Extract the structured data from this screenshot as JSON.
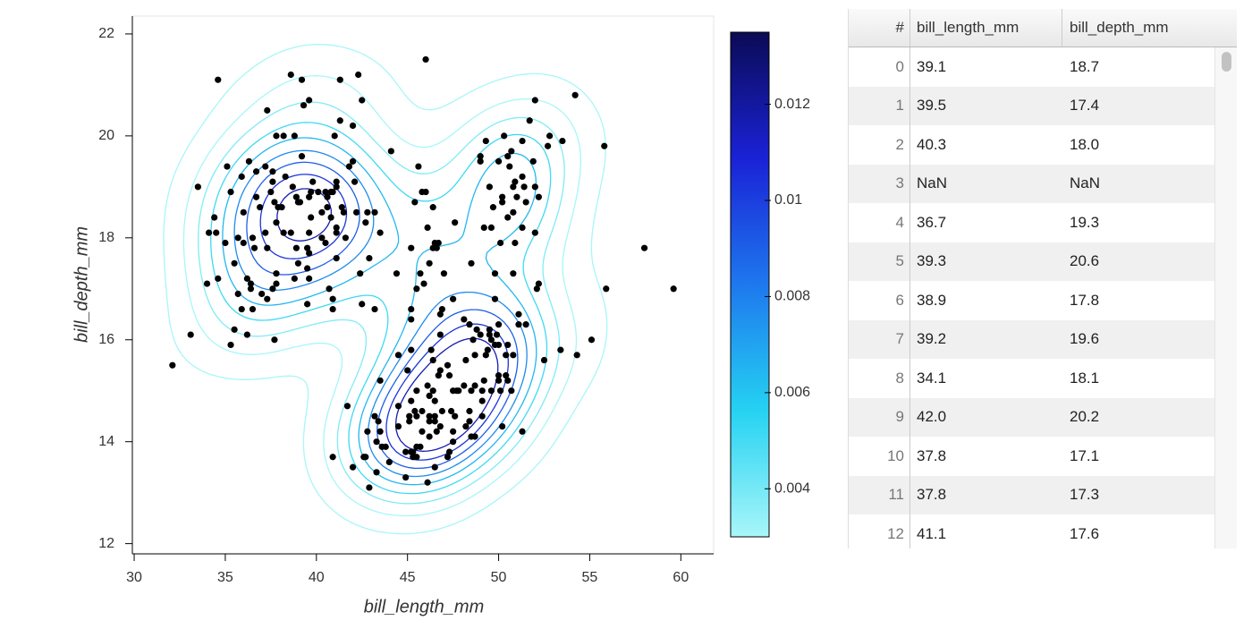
{
  "chart_data": {
    "type": "scatter-contour",
    "xlabel": "bill_length_mm",
    "ylabel": "bill_depth_mm",
    "xlim": [
      29.9,
      61.8
    ],
    "ylim": [
      11.8,
      22.35
    ],
    "xticks": [
      30,
      35,
      40,
      45,
      50,
      55,
      60
    ],
    "yticks": [
      12,
      14,
      16,
      18,
      20,
      22
    ],
    "point_color": "#000000",
    "points": [
      [
        38.6,
        18.1
      ],
      [
        39.1,
        18.7
      ],
      [
        39.5,
        17.4
      ],
      [
        40.3,
        18.0
      ],
      [
        36.7,
        19.3
      ],
      [
        39.3,
        20.6
      ],
      [
        38.9,
        17.8
      ],
      [
        39.2,
        19.6
      ],
      [
        34.1,
        18.1
      ],
      [
        42.0,
        20.2
      ],
      [
        37.8,
        17.1
      ],
      [
        37.8,
        17.3
      ],
      [
        41.1,
        17.6
      ],
      [
        38.6,
        21.2
      ],
      [
        34.6,
        21.1
      ],
      [
        36.6,
        17.8
      ],
      [
        38.7,
        19.0
      ],
      [
        42.5,
        20.7
      ],
      [
        34.4,
        18.4
      ],
      [
        46.0,
        21.5
      ],
      [
        37.8,
        18.3
      ],
      [
        37.7,
        18.7
      ],
      [
        35.9,
        19.2
      ],
      [
        38.2,
        18.1
      ],
      [
        38.8,
        17.2
      ],
      [
        35.3,
        18.9
      ],
      [
        40.6,
        18.6
      ],
      [
        40.5,
        17.9
      ],
      [
        37.9,
        18.6
      ],
      [
        40.5,
        18.9
      ],
      [
        39.5,
        16.7
      ],
      [
        37.2,
        18.1
      ],
      [
        39.5,
        17.8
      ],
      [
        40.9,
        18.9
      ],
      [
        36.4,
        17.0
      ],
      [
        39.2,
        21.1
      ],
      [
        38.8,
        20.0
      ],
      [
        42.2,
        18.5
      ],
      [
        37.6,
        19.3
      ],
      [
        39.8,
        19.1
      ],
      [
        36.5,
        18.0
      ],
      [
        40.8,
        18.4
      ],
      [
        36.0,
        18.5
      ],
      [
        44.1,
        19.7
      ],
      [
        37.0,
        16.9
      ],
      [
        39.6,
        18.8
      ],
      [
        41.1,
        19.0
      ],
      [
        37.5,
        18.9
      ],
      [
        36.0,
        17.9
      ],
      [
        42.3,
        21.2
      ],
      [
        39.6,
        17.7
      ],
      [
        40.1,
        18.9
      ],
      [
        35.0,
        17.9
      ],
      [
        42.0,
        19.5
      ],
      [
        34.5,
        18.1
      ],
      [
        41.4,
        18.6
      ],
      [
        39.0,
        17.5
      ],
      [
        40.6,
        18.8
      ],
      [
        36.5,
        16.6
      ],
      [
        37.6,
        19.1
      ],
      [
        35.7,
        16.9
      ],
      [
        41.3,
        21.1
      ],
      [
        37.6,
        17.0
      ],
      [
        41.1,
        18.2
      ],
      [
        36.4,
        17.1
      ],
      [
        41.6,
        18.0
      ],
      [
        35.5,
        16.2
      ],
      [
        41.1,
        19.1
      ],
      [
        35.9,
        16.6
      ],
      [
        41.8,
        19.4
      ],
      [
        33.5,
        19.0
      ],
      [
        39.7,
        18.4
      ],
      [
        39.6,
        17.2
      ],
      [
        45.8,
        18.9
      ],
      [
        35.5,
        17.5
      ],
      [
        42.8,
        18.5
      ],
      [
        40.9,
        16.8
      ],
      [
        37.2,
        19.4
      ],
      [
        36.2,
        16.1
      ],
      [
        42.1,
        19.1
      ],
      [
        34.6,
        17.2
      ],
      [
        42.9,
        17.6
      ],
      [
        36.7,
        18.8
      ],
      [
        35.1,
        19.4
      ],
      [
        37.3,
        20.5
      ],
      [
        41.3,
        20.3
      ],
      [
        36.3,
        19.5
      ],
      [
        36.9,
        18.6
      ],
      [
        38.3,
        19.2
      ],
      [
        38.9,
        18.8
      ],
      [
        35.7,
        18.0
      ],
      [
        41.1,
        18.1
      ],
      [
        34.0,
        17.1
      ],
      [
        39.6,
        20.7
      ],
      [
        36.2,
        17.2
      ],
      [
        40.8,
        18.9
      ],
      [
        38.1,
        18.6
      ],
      [
        40.3,
        18.5
      ],
      [
        33.1,
        16.1
      ],
      [
        43.2,
        18.5
      ],
      [
        41.0,
        20.0
      ],
      [
        37.7,
        16.0
      ],
      [
        37.8,
        20.0
      ],
      [
        39.7,
        18.9
      ],
      [
        39.6,
        18.1
      ],
      [
        38.2,
        20.0
      ],
      [
        32.1,
        15.5
      ],
      [
        40.7,
        17.0
      ],
      [
        37.3,
        16.8
      ],
      [
        39.0,
        18.7
      ],
      [
        37.3,
        17.8
      ],
      [
        42.7,
        18.3
      ],
      [
        41.5,
        18.5
      ],
      [
        35.3,
        15.9
      ],
      [
        46.5,
        17.9
      ],
      [
        50.0,
        19.5
      ],
      [
        51.3,
        19.2
      ],
      [
        45.4,
        18.7
      ],
      [
        52.7,
        19.8
      ],
      [
        45.2,
        17.8
      ],
      [
        46.1,
        18.2
      ],
      [
        51.3,
        18.2
      ],
      [
        46.0,
        18.9
      ],
      [
        51.3,
        19.9
      ],
      [
        46.6,
        17.8
      ],
      [
        51.7,
        20.3
      ],
      [
        47.0,
        17.3
      ],
      [
        52.0,
        18.1
      ],
      [
        45.9,
        17.1
      ],
      [
        50.5,
        19.6
      ],
      [
        50.3,
        20.0
      ],
      [
        58.0,
        17.8
      ],
      [
        46.4,
        18.6
      ],
      [
        49.2,
        18.2
      ],
      [
        42.4,
        17.3
      ],
      [
        48.5,
        17.5
      ],
      [
        43.2,
        16.6
      ],
      [
        50.6,
        19.4
      ],
      [
        46.7,
        17.9
      ],
      [
        52.0,
        19.0
      ],
      [
        50.5,
        18.4
      ],
      [
        49.5,
        19.0
      ],
      [
        46.4,
        17.8
      ],
      [
        52.8,
        20.0
      ],
      [
        40.9,
        16.6
      ],
      [
        54.2,
        20.8
      ],
      [
        42.5,
        16.7
      ],
      [
        51.0,
        18.8
      ],
      [
        49.7,
        18.6
      ],
      [
        47.5,
        16.8
      ],
      [
        47.6,
        18.3
      ],
      [
        52.0,
        20.7
      ],
      [
        46.9,
        16.6
      ],
      [
        53.5,
        19.9
      ],
      [
        49.0,
        19.5
      ],
      [
        46.2,
        17.5
      ],
      [
        50.9,
        19.1
      ],
      [
        45.5,
        17.0
      ],
      [
        50.9,
        17.9
      ],
      [
        50.8,
        18.5
      ],
      [
        50.1,
        17.9
      ],
      [
        49.0,
        19.6
      ],
      [
        51.5,
        18.7
      ],
      [
        49.8,
        17.3
      ],
      [
        48.1,
        16.4
      ],
      [
        51.4,
        19.0
      ],
      [
        45.7,
        17.3
      ],
      [
        50.7,
        19.7
      ],
      [
        52.2,
        18.8
      ],
      [
        45.2,
        16.6
      ],
      [
        49.3,
        19.9
      ],
      [
        50.2,
        18.8
      ],
      [
        45.6,
        19.4
      ],
      [
        51.9,
        19.5
      ],
      [
        46.8,
        16.5
      ],
      [
        55.8,
        19.8
      ],
      [
        43.5,
        18.1
      ],
      [
        49.6,
        18.2
      ],
      [
        50.8,
        19.0
      ],
      [
        50.2,
        18.7
      ],
      [
        46.1,
        13.2
      ],
      [
        50.0,
        16.3
      ],
      [
        48.7,
        14.1
      ],
      [
        50.0,
        15.2
      ],
      [
        47.6,
        14.5
      ],
      [
        46.5,
        13.5
      ],
      [
        45.4,
        14.6
      ],
      [
        46.7,
        15.3
      ],
      [
        43.3,
        13.4
      ],
      [
        46.8,
        15.4
      ],
      [
        40.9,
        13.7
      ],
      [
        49.0,
        16.1
      ],
      [
        45.5,
        13.7
      ],
      [
        48.4,
        14.6
      ],
      [
        45.8,
        14.6
      ],
      [
        49.3,
        15.7
      ],
      [
        42.0,
        13.5
      ],
      [
        49.2,
        15.2
      ],
      [
        46.2,
        14.5
      ],
      [
        48.7,
        15.1
      ],
      [
        50.2,
        14.3
      ],
      [
        45.1,
        14.5
      ],
      [
        46.5,
        14.5
      ],
      [
        46.3,
        15.8
      ],
      [
        42.9,
        13.1
      ],
      [
        46.1,
        15.1
      ],
      [
        44.5,
        14.3
      ],
      [
        47.8,
        15.0
      ],
      [
        48.2,
        14.3
      ],
      [
        50.0,
        15.3
      ],
      [
        47.3,
        15.3
      ],
      [
        42.8,
        14.2
      ],
      [
        59.6,
        17.0
      ],
      [
        49.1,
        14.8
      ],
      [
        48.4,
        16.3
      ],
      [
        42.6,
        13.7
      ],
      [
        44.4,
        17.3
      ],
      [
        44.0,
        13.6
      ],
      [
        48.7,
        15.7
      ],
      [
        42.7,
        13.7
      ],
      [
        49.6,
        16.0
      ],
      [
        45.3,
        13.7
      ],
      [
        49.6,
        15.0
      ],
      [
        50.5,
        15.9
      ],
      [
        43.6,
        13.9
      ],
      [
        45.5,
        13.9
      ],
      [
        44.9,
        13.3
      ],
      [
        45.2,
        15.8
      ],
      [
        46.6,
        14.2
      ],
      [
        48.5,
        14.1
      ],
      [
        45.1,
        14.4
      ],
      [
        50.1,
        15.0
      ],
      [
        46.5,
        14.4
      ],
      [
        45.0,
        15.4
      ],
      [
        43.8,
        13.9
      ],
      [
        45.5,
        15.0
      ],
      [
        43.2,
        14.5
      ],
      [
        50.4,
        15.3
      ],
      [
        45.3,
        13.8
      ],
      [
        46.2,
        14.9
      ],
      [
        45.7,
        13.9
      ],
      [
        54.3,
        15.7
      ],
      [
        45.8,
        14.2
      ],
      [
        49.8,
        16.8
      ],
      [
        46.2,
        14.4
      ],
      [
        49.5,
        16.2
      ],
      [
        43.5,
        14.2
      ],
      [
        50.7,
        15.0
      ],
      [
        47.7,
        15.0
      ],
      [
        46.4,
        15.6
      ],
      [
        48.2,
        15.6
      ],
      [
        46.5,
        14.8
      ],
      [
        46.4,
        15.0
      ],
      [
        48.6,
        16.0
      ],
      [
        47.5,
        14.2
      ],
      [
        51.1,
        16.3
      ],
      [
        45.2,
        13.8
      ],
      [
        45.2,
        16.4
      ],
      [
        49.1,
        14.5
      ],
      [
        52.5,
        15.6
      ],
      [
        47.4,
        14.6
      ],
      [
        50.0,
        15.9
      ],
      [
        44.9,
        13.8
      ],
      [
        50.8,
        17.3
      ],
      [
        43.4,
        14.4
      ],
      [
        51.3,
        14.2
      ],
      [
        47.5,
        14.0
      ],
      [
        52.1,
        17.0
      ],
      [
        47.5,
        15.0
      ],
      [
        52.2,
        17.1
      ],
      [
        45.5,
        14.5
      ],
      [
        49.5,
        16.1
      ],
      [
        44.5,
        14.7
      ],
      [
        50.8,
        15.7
      ],
      [
        49.4,
        15.8
      ],
      [
        46.9,
        14.6
      ],
      [
        48.4,
        14.4
      ],
      [
        51.1,
        16.5
      ],
      [
        48.5,
        15.0
      ],
      [
        55.9,
        17.0
      ],
      [
        47.2,
        15.5
      ],
      [
        49.1,
        15.0
      ],
      [
        47.3,
        13.8
      ],
      [
        46.8,
        16.1
      ],
      [
        41.7,
        14.7
      ],
      [
        53.4,
        15.8
      ],
      [
        43.3,
        14.0
      ],
      [
        48.1,
        15.1
      ],
      [
        50.5,
        15.2
      ],
      [
        49.8,
        15.9
      ],
      [
        43.5,
        15.2
      ],
      [
        51.5,
        16.3
      ],
      [
        46.2,
        14.1
      ],
      [
        55.1,
        16.0
      ],
      [
        44.5,
        15.7
      ],
      [
        48.8,
        16.2
      ],
      [
        47.2,
        13.7
      ],
      [
        46.8,
        14.3
      ],
      [
        50.4,
        15.7
      ],
      [
        45.2,
        14.8
      ],
      [
        49.9,
        16.1
      ]
    ],
    "contour_levels": [
      0.0012,
      0.0025,
      0.0038,
      0.0051,
      0.0064,
      0.0077,
      0.009,
      0.0103,
      0.0116
    ],
    "colormap": [
      "#a8f6f9",
      "#25d2f2",
      "#1e78ee",
      "#1a22d6",
      "#0b0b55"
    ],
    "clim": [
      0.003,
      0.0135
    ],
    "cticks": [
      0.004,
      0.006,
      0.008,
      0.01,
      0.012
    ]
  },
  "table": {
    "columns": [
      "#",
      "bill_length_mm",
      "bill_depth_mm"
    ],
    "rows": [
      [
        "0",
        "39.1",
        "18.7"
      ],
      [
        "1",
        "39.5",
        "17.4"
      ],
      [
        "2",
        "40.3",
        "18.0"
      ],
      [
        "3",
        "NaN",
        "NaN"
      ],
      [
        "4",
        "36.7",
        "19.3"
      ],
      [
        "5",
        "39.3",
        "20.6"
      ],
      [
        "6",
        "38.9",
        "17.8"
      ],
      [
        "7",
        "39.2",
        "19.6"
      ],
      [
        "8",
        "34.1",
        "18.1"
      ],
      [
        "9",
        "42.0",
        "20.2"
      ],
      [
        "10",
        "37.8",
        "17.1"
      ],
      [
        "11",
        "37.8",
        "17.3"
      ],
      [
        "12",
        "41.1",
        "17.6"
      ]
    ]
  }
}
